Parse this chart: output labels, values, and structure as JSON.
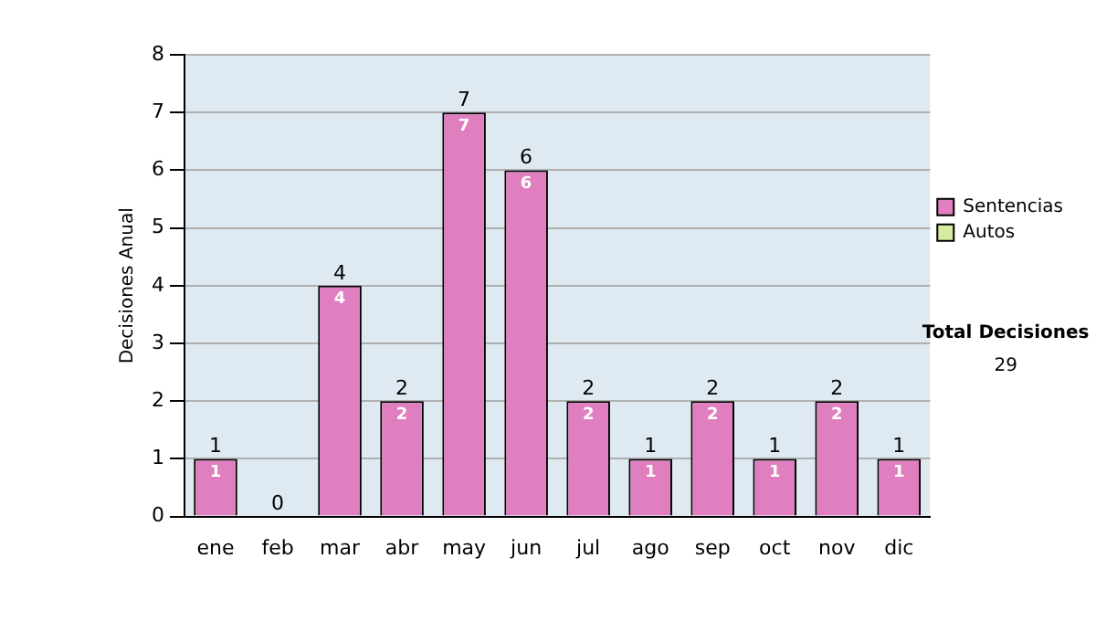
{
  "chart_data": {
    "type": "bar",
    "ylabel": "Decisiones Anual",
    "stacked": true,
    "categories": [
      "ene",
      "feb",
      "mar",
      "abr",
      "may",
      "jun",
      "jul",
      "ago",
      "sep",
      "oct",
      "nov",
      "dic"
    ],
    "series": [
      {
        "name": "Sentencias",
        "color": "#e07fbf",
        "values": [
          1,
          0,
          4,
          2,
          7,
          6,
          2,
          1,
          2,
          1,
          2,
          1
        ],
        "value_labels": [
          "1",
          null,
          "4",
          "2",
          "7",
          "6",
          "2",
          "1",
          "2",
          "1",
          "2",
          "1"
        ]
      },
      {
        "name": "Autos",
        "color": "#d6eca0",
        "values": [
          0,
          0,
          0,
          0,
          0,
          0,
          0,
          0,
          0,
          0,
          0,
          0
        ]
      }
    ],
    "totals": [
      "1",
      "0",
      "4",
      "2",
      "7",
      "6",
      "2",
      "1",
      "2",
      "1",
      "2",
      "1"
    ],
    "ylim": [
      0,
      8
    ],
    "yticks": [
      0,
      1,
      2,
      3,
      4,
      5,
      6,
      7,
      8
    ],
    "grid": "y",
    "legend": "right",
    "annotations": [
      "Total Decisiones",
      "29"
    ]
  }
}
